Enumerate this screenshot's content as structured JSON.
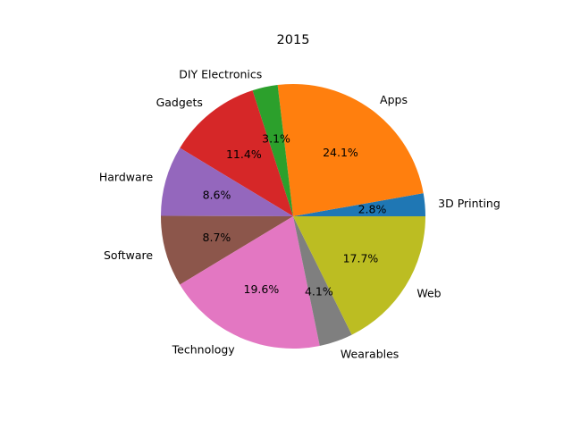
{
  "chart_data": {
    "type": "pie",
    "title": "2015",
    "categories": [
      "3D Printing",
      "Apps",
      "DIY Electronics",
      "Gadgets",
      "Hardware",
      "Software",
      "Technology",
      "Wearables",
      "Web"
    ],
    "values": [
      2.8,
      24.1,
      3.1,
      11.4,
      8.6,
      8.7,
      19.6,
      4.1,
      17.7
    ],
    "value_labels": [
      "2.8%",
      "24.1%",
      "3.1%",
      "11.4%",
      "8.6%",
      "8.7%",
      "19.6%",
      "4.1%",
      "17.7%"
    ],
    "colors": [
      "#1f77b4",
      "#ff7f0e",
      "#2ca02c",
      "#d62728",
      "#9467bd",
      "#8c564b",
      "#e377c2",
      "#7f7f7f",
      "#bcbd22"
    ],
    "start_angle_deg": 0,
    "direction": "counterclockwise"
  }
}
